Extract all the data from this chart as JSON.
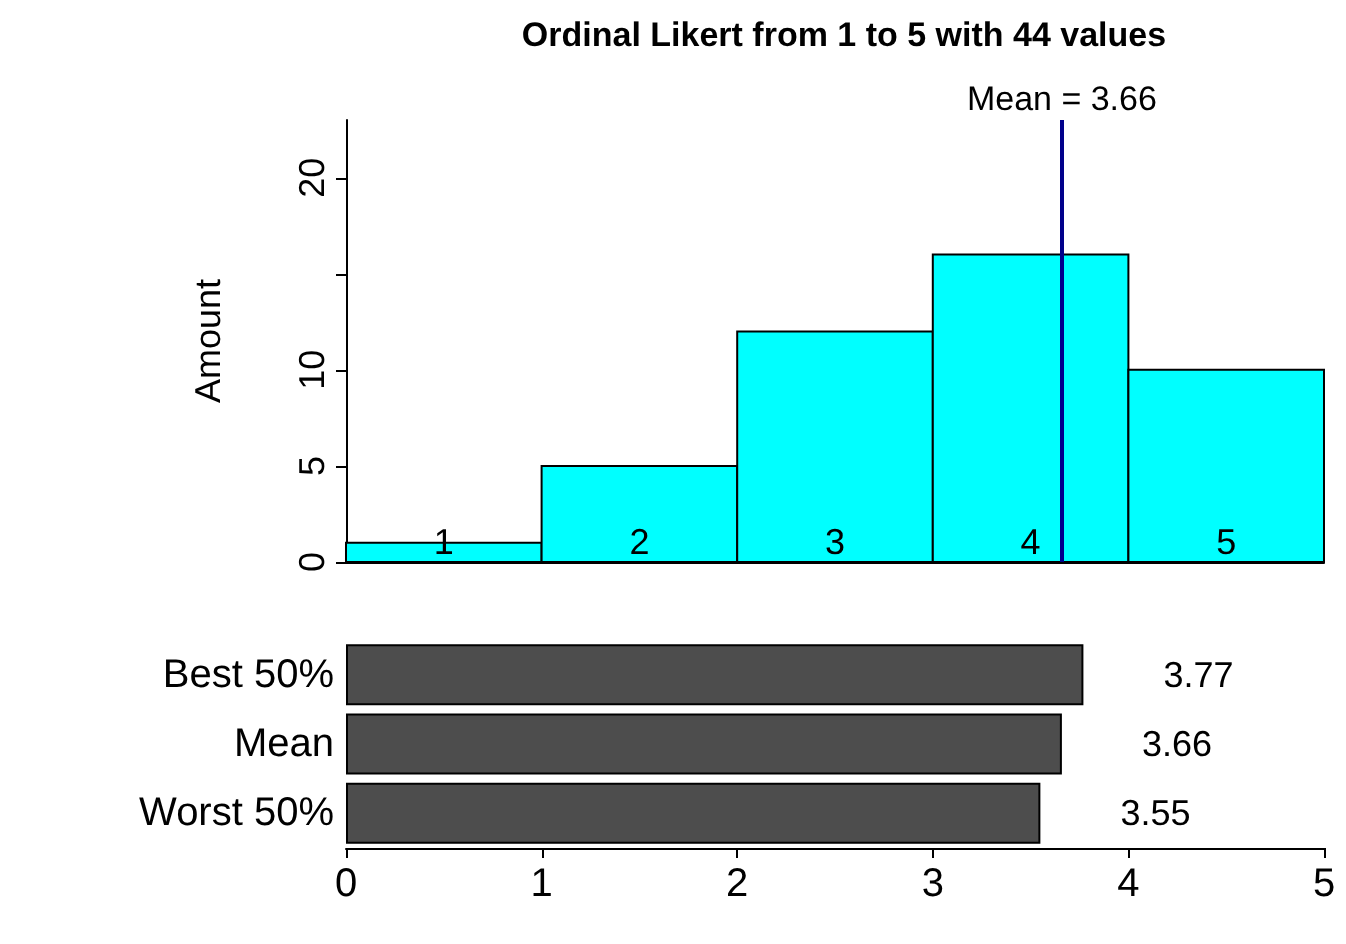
{
  "chart_data": [
    {
      "type": "histogram",
      "title": "Ordinal Likert from 1 to 5 with 44 values",
      "ylabel": "Amount",
      "bins": [
        0,
        1,
        2,
        3,
        4,
        5
      ],
      "values": [
        1,
        5,
        12,
        16,
        10
      ],
      "color": "#00ffff",
      "xlim": [
        0,
        5
      ],
      "tick_labels": "y",
      "annotations": [
        {
          "text": "1",
          "x": 0.5,
          "y": 0
        },
        {
          "text": "2",
          "x": 1.5,
          "y": 0
        },
        {
          "text": "3",
          "x": 2.5,
          "y": 0
        },
        {
          "text": "4",
          "x": 3.5,
          "y": 0
        },
        {
          "text": "5",
          "x": 4.5,
          "y": 0
        }
      ],
      "ylim": [
        0,
        23
      ],
      "yticks": [
        0,
        5,
        10,
        {
          "value": 15,
          "label": null
        },
        20
      ],
      "grid": false,
      "ref_lines": [
        {
          "axis": "x",
          "value": 3.66,
          "label": "Mean = 3.66",
          "color": "#00008b"
        }
      ]
    },
    {
      "type": "bar",
      "orientation": "horizontal",
      "categories": [
        "Best 50%",
        "Mean",
        "Worst 50%"
      ],
      "values": [
        3.77,
        3.66,
        3.55
      ],
      "color": "#4d4d4d",
      "xlim": [
        0,
        5
      ],
      "xticks": [
        0,
        1,
        2,
        3,
        4,
        5
      ],
      "data_labels": true,
      "grid": false
    }
  ]
}
